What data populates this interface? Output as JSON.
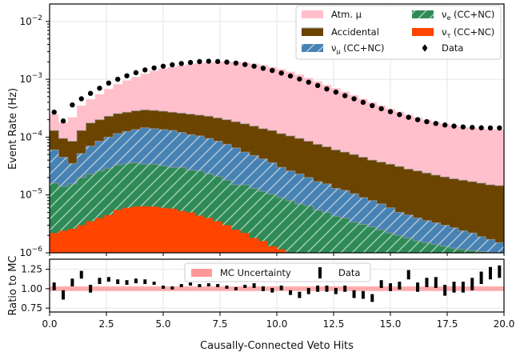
{
  "chart_data": [
    {
      "type": "area",
      "scale": "log",
      "ylabel": "Event Rate (Hz)",
      "ylim": [
        1e-06,
        0.02
      ],
      "xlim": [
        0,
        20
      ],
      "bin_width": 0.4,
      "grid": true,
      "legend_position": "top-right",
      "yticks": [
        {
          "v": 1e-06,
          "base": "10",
          "exp": "−6"
        },
        {
          "v": 1e-05,
          "base": "10",
          "exp": "−5"
        },
        {
          "v": 0.0001,
          "base": "10",
          "exp": "−4"
        },
        {
          "v": 0.001,
          "base": "10",
          "exp": "−3"
        },
        {
          "v": 0.01,
          "base": "10",
          "exp": "−2"
        }
      ],
      "legend": [
        {
          "label": "Atm. μ",
          "color": "#ffc0cb",
          "kind": "fill"
        },
        {
          "label": "ν_e (CC+NC)",
          "color": "#2e8b57",
          "kind": "hatch"
        },
        {
          "label": "Accidental",
          "color": "#6b4400",
          "kind": "fill"
        },
        {
          "label": "ν_τ (CC+NC)",
          "color": "#ff4500",
          "kind": "fill"
        },
        {
          "label": "ν_μ (CC+NC)",
          "color": "#4682b4",
          "kind": "hatch"
        },
        {
          "label": "Data",
          "color": "#000000",
          "kind": "marker"
        }
      ],
      "series": [
        {
          "name": "nu_tau",
          "color": "#ff4500",
          "values": [
            2.2e-06,
            2.4e-06,
            2.6e-06,
            3e-06,
            3.5e-06,
            4e-06,
            4.5e-06,
            5.5e-06,
            6e-06,
            6.3e-06,
            6.4e-06,
            6.3e-06,
            6e-06,
            5.8e-06,
            5.3e-06,
            5e-06,
            4.4e-06,
            4e-06,
            3.5e-06,
            3e-06,
            2.5e-06,
            2.2e-06,
            1.8e-06,
            1.6e-06,
            1.3e-06,
            1.15e-06
          ]
        },
        {
          "name": "nu_e",
          "color": "#2e8b57",
          "values": [
            1.6e-05,
            1.4e-05,
            1.55e-05,
            2e-05,
            2.3e-05,
            2.6e-05,
            2.9e-05,
            3.3e-05,
            3.5e-05,
            3.6e-05,
            3.4e-05,
            3.4e-05,
            3.2e-05,
            3e-05,
            3e-05,
            2.7e-05,
            2.6e-05,
            2.3e-05,
            2.1e-05,
            1.8e-05,
            1.5e-05,
            1.5e-05,
            1.3e-05,
            1.15e-05,
            1.03e-05,
            9e-06,
            8e-06,
            7e-06,
            6.5e-06,
            5.5e-06,
            5e-06,
            4.3e-06,
            4e-06,
            3.4e-06,
            3.1e-06,
            2.8e-06,
            2.5e-06,
            2.2e-06,
            2e-06,
            1.8e-06,
            1.6e-06,
            1.5e-06,
            1.4e-06,
            1.3e-06,
            1.2e-06,
            1.15e-06,
            1.1e-06,
            1.05e-06,
            1.02e-06,
            1e-06
          ]
        },
        {
          "name": "nu_mu",
          "color": "#4682b4",
          "values": [
            6e-05,
            4.5e-05,
            3.5e-05,
            5.2e-05,
            7e-05,
            8.5e-05,
            0.0001,
            0.000115,
            0.000125,
            0.000135,
            0.000145,
            0.00014,
            0.000135,
            0.00013,
            0.00012,
            0.00011,
            0.000105,
            9.5e-05,
            8.5e-05,
            7.5e-05,
            6.5e-05,
            5.5e-05,
            4.8e-05,
            4.2e-05,
            3.6e-05,
            3e-05,
            2.6e-05,
            2.3e-05,
            2e-05,
            1.7e-05,
            1.55e-05,
            1.3e-05,
            1.2e-05,
            1.05e-05,
            9e-06,
            8e-06,
            7e-06,
            6e-06,
            5e-06,
            4.5e-06,
            4e-06,
            3.6e-06,
            3.3e-06,
            3e-06,
            2.7e-06,
            2.4e-06,
            2.2e-06,
            1.9e-06,
            1.7e-06,
            1.5e-06
          ]
        },
        {
          "name": "accidental",
          "color": "#6b4400",
          "values": [
            0.00013,
            9.5e-05,
            8.5e-05,
            0.00013,
            0.000175,
            0.0002,
            0.00023,
            0.000255,
            0.00027,
            0.000285,
            0.000295,
            0.00029,
            0.00028,
            0.00027,
            0.00026,
            0.00025,
            0.00024,
            0.00023,
            0.000215,
            0.0002,
            0.000185,
            0.00017,
            0.000155,
            0.00014,
            0.00013,
            0.000115,
            0.000105,
            9.5e-05,
            8.5e-05,
            7.5e-05,
            6.8e-05,
            6e-05,
            5.5e-05,
            5e-05,
            4.5e-05,
            4e-05,
            3.7e-05,
            3.4e-05,
            3.1e-05,
            2.8e-05,
            2.6e-05,
            2.4e-05,
            2.2e-05,
            2.05e-05,
            1.9e-05,
            1.8e-05,
            1.7e-05,
            1.6e-05,
            1.5e-05,
            1.45e-05
          ]
        },
        {
          "name": "atm_mu",
          "color": "#ffc0cb",
          "values": [
            0.00025,
            0.00018,
            0.00022,
            0.00035,
            0.00045,
            0.00055,
            0.00068,
            0.00082,
            0.00095,
            0.0011,
            0.00125,
            0.0014,
            0.00152,
            0.00162,
            0.00172,
            0.00182,
            0.0019,
            0.00196,
            0.002,
            0.00202,
            0.002,
            0.00195,
            0.00187,
            0.00176,
            0.00163,
            0.0015,
            0.00135,
            0.0012,
            0.00105,
            0.00092,
            0.0008,
            0.0007,
            0.00061,
            0.00053,
            0.00046,
            0.0004,
            0.00035,
            0.00031,
            0.000275,
            0.000245,
            0.00022,
            0.0002,
            0.000185,
            0.00017,
            0.00016,
            0.00015,
            0.000145,
            0.00014,
            0.000137,
            0.000135
          ]
        }
      ],
      "data_points": {
        "x": [
          0.2,
          0.6,
          1.0,
          1.4,
          1.8,
          2.2,
          2.6,
          3.0,
          3.4,
          3.8,
          4.2,
          4.6,
          5.0,
          5.4,
          5.8,
          6.2,
          6.6,
          7.0,
          7.4,
          7.8,
          8.2,
          8.6,
          9.0,
          9.4,
          9.8,
          10.2,
          10.6,
          11.0,
          11.4,
          11.8,
          12.2,
          12.6,
          13.0,
          13.4,
          13.8,
          14.2,
          14.6,
          15.0,
          15.4,
          15.8,
          16.2,
          16.6,
          17.0,
          17.4,
          17.8,
          18.2,
          18.6,
          19.0,
          19.4,
          19.8
        ],
        "y": [
          0.00027,
          0.00019,
          0.00036,
          0.00046,
          0.00057,
          0.0007,
          0.00086,
          0.001,
          0.00115,
          0.0013,
          0.00145,
          0.00157,
          0.00168,
          0.00178,
          0.00187,
          0.00195,
          0.00202,
          0.00205,
          0.00203,
          0.00198,
          0.0019,
          0.0018,
          0.00168,
          0.00155,
          0.00142,
          0.00128,
          0.00114,
          0.00101,
          0.00089,
          0.00078,
          0.00068,
          0.0006,
          0.00052,
          0.00046,
          0.0004,
          0.00035,
          0.00031,
          0.000275,
          0.000245,
          0.00022,
          0.0002,
          0.000185,
          0.000172,
          0.000162,
          0.000155,
          0.00015,
          0.000147,
          0.000145,
          0.000144,
          0.000144
        ]
      }
    },
    {
      "type": "scatter",
      "xlabel": "Causally-Connected Veto Hits",
      "ylabel": "Ratio to MC",
      "xlim": [
        0,
        20
      ],
      "ylim": [
        0.7,
        1.38
      ],
      "grid": true,
      "legend_position": "top-center",
      "xticks": [
        "0.0",
        "2.5",
        "5.0",
        "7.5",
        "10.0",
        "12.5",
        "15.0",
        "17.5",
        "20.0"
      ],
      "yticks": [
        "0.75",
        "1.00",
        "1.25"
      ],
      "legend": [
        {
          "label": "MC Uncertainty",
          "color": "#ff9999",
          "kind": "band"
        },
        {
          "label": "Data",
          "color": "#000000",
          "kind": "errorbar"
        }
      ],
      "band": {
        "lower": 0.97,
        "upper": 1.03,
        "color": "#ff9999"
      },
      "x": [
        0.2,
        0.6,
        1.0,
        1.4,
        1.8,
        2.2,
        2.6,
        3.0,
        3.4,
        3.8,
        4.2,
        4.6,
        5.0,
        5.4,
        5.8,
        6.2,
        6.6,
        7.0,
        7.4,
        7.8,
        8.2,
        8.6,
        9.0,
        9.4,
        9.8,
        10.2,
        10.6,
        11.0,
        11.4,
        11.8,
        12.2,
        12.6,
        13.0,
        13.4,
        13.8,
        14.2,
        14.6,
        15.0,
        15.4,
        15.8,
        16.2,
        16.6,
        17.0,
        17.4,
        17.8,
        18.2,
        18.6,
        19.0,
        19.4,
        19.8
      ],
      "y": [
        1.03,
        0.92,
        1.08,
        1.18,
        1.0,
        1.1,
        1.12,
        1.09,
        1.08,
        1.1,
        1.09,
        1.07,
        1.02,
        1.01,
        1.04,
        1.06,
        1.04,
        1.05,
        1.04,
        1.02,
        1.0,
        1.03,
        1.04,
        1.0,
        0.98,
        1.01,
        0.95,
        0.92,
        0.97,
        1.0,
        1.0,
        0.97,
        1.0,
        0.93,
        0.92,
        0.88,
        1.06,
        1.02,
        1.04,
        1.18,
        1.02,
        1.08,
        1.08,
        0.98,
        1.02,
        1.02,
        1.06,
        1.14,
        1.2,
        1.22
      ],
      "err": [
        0.05,
        0.06,
        0.05,
        0.05,
        0.05,
        0.04,
        0.03,
        0.03,
        0.03,
        0.03,
        0.03,
        0.02,
        0.02,
        0.02,
        0.02,
        0.02,
        0.02,
        0.02,
        0.02,
        0.02,
        0.02,
        0.02,
        0.03,
        0.03,
        0.03,
        0.03,
        0.03,
        0.04,
        0.04,
        0.04,
        0.04,
        0.04,
        0.04,
        0.05,
        0.05,
        0.05,
        0.05,
        0.05,
        0.05,
        0.06,
        0.06,
        0.06,
        0.07,
        0.07,
        0.07,
        0.07,
        0.08,
        0.08,
        0.08,
        0.08
      ]
    }
  ]
}
